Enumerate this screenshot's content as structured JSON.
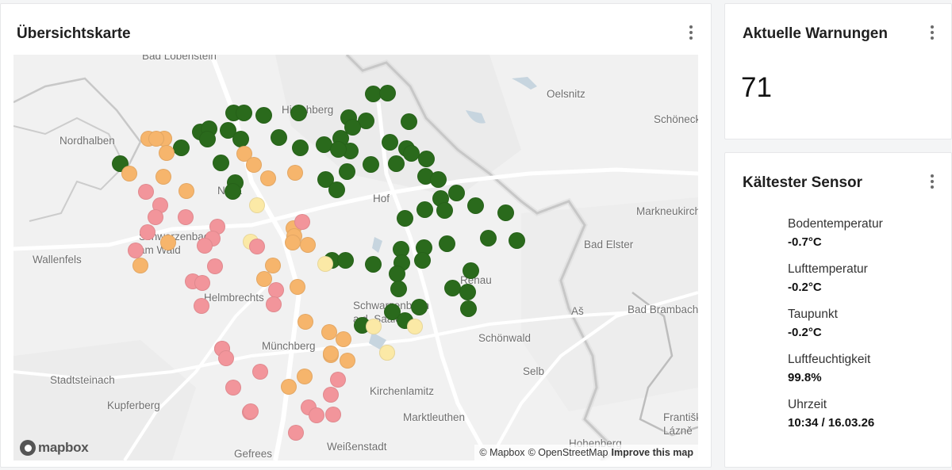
{
  "map_card": {
    "title": "Übersichtskarte",
    "place_labels": [
      "Bad Lobenstein",
      "Hirschberg",
      "Oelsnitz",
      "Schöneck",
      "Nordhalben",
      "Naila",
      "Hof",
      "Markneukirchen",
      "Schwarzenbach am Wald",
      "Bad Elster",
      "Wallenfels",
      "Rehau",
      "Helmbrechts",
      "Schwarzenbach a.d. Saale",
      "Aš",
      "Bad Brambach",
      "Schönwald",
      "Münchberg",
      "Selb",
      "Stadtsteinach",
      "Kirchenlamitz",
      "Kupferberg",
      "Marktleuthen",
      "Františkovy Lázně",
      "Hohenberg",
      "Gefrees",
      "Weißenstadt"
    ],
    "attribution": {
      "mapbox": "© Mapbox",
      "osm": "© OpenStreetMap",
      "improve": "Improve this map"
    },
    "logo_text": "mapbox",
    "marker_colors": {
      "dark_green": "#2a6a1c",
      "light_yellow": "#fbe9a6",
      "orange": "#f6b56c",
      "pink": "#f2959b"
    },
    "markers": [
      {
        "c": "dark_green"
      },
      {
        "c": "dark_green"
      },
      {
        "c": "dark_green"
      },
      {
        "c": "dark_green"
      },
      {
        "c": "dark_green"
      },
      {
        "c": "dark_green"
      },
      {
        "c": "dark_green"
      },
      {
        "c": "dark_green"
      },
      {
        "c": "dark_green"
      },
      {
        "c": "dark_green"
      },
      {
        "c": "dark_green"
      },
      {
        "c": "dark_green"
      },
      {
        "c": "dark_green"
      },
      {
        "c": "dark_green"
      },
      {
        "c": "dark_green"
      },
      {
        "c": "dark_green"
      },
      {
        "c": "dark_green"
      },
      {
        "c": "dark_green"
      },
      {
        "c": "dark_green"
      },
      {
        "c": "dark_green"
      },
      {
        "c": "dark_green"
      },
      {
        "c": "dark_green"
      },
      {
        "c": "dark_green"
      },
      {
        "c": "dark_green"
      },
      {
        "c": "dark_green"
      },
      {
        "c": "dark_green"
      },
      {
        "c": "dark_green"
      },
      {
        "c": "dark_green"
      },
      {
        "c": "dark_green"
      },
      {
        "c": "dark_green"
      },
      {
        "c": "dark_green"
      },
      {
        "c": "dark_green"
      },
      {
        "c": "dark_green"
      },
      {
        "c": "dark_green"
      },
      {
        "c": "dark_green"
      },
      {
        "c": "dark_green"
      },
      {
        "c": "dark_green"
      },
      {
        "c": "dark_green"
      },
      {
        "c": "dark_green"
      },
      {
        "c": "dark_green"
      },
      {
        "c": "dark_green"
      },
      {
        "c": "dark_green"
      },
      {
        "c": "dark_green"
      },
      {
        "c": "dark_green"
      },
      {
        "c": "dark_green"
      },
      {
        "c": "dark_green"
      },
      {
        "c": "dark_green"
      },
      {
        "c": "dark_green"
      },
      {
        "c": "dark_green"
      },
      {
        "c": "dark_green"
      },
      {
        "c": "dark_green"
      },
      {
        "c": "dark_green"
      },
      {
        "c": "dark_green"
      },
      {
        "c": "dark_green"
      },
      {
        "c": "dark_green"
      },
      {
        "c": "dark_green"
      },
      {
        "c": "dark_green"
      },
      {
        "c": "dark_green"
      },
      {
        "c": "dark_green"
      },
      {
        "c": "dark_green"
      },
      {
        "c": "dark_green"
      },
      {
        "c": "dark_green"
      },
      {
        "c": "dark_green"
      },
      {
        "c": "dark_green"
      },
      {
        "c": "light_yellow"
      },
      {
        "c": "light_yellow"
      },
      {
        "c": "light_yellow"
      },
      {
        "c": "light_yellow"
      },
      {
        "c": "light_yellow"
      },
      {
        "c": "light_yellow"
      },
      {
        "c": "light_yellow"
      },
      {
        "c": "light_yellow"
      },
      {
        "c": "orange"
      },
      {
        "c": "orange"
      },
      {
        "c": "orange"
      },
      {
        "c": "orange"
      },
      {
        "c": "orange"
      },
      {
        "c": "orange"
      },
      {
        "c": "orange"
      },
      {
        "c": "orange"
      },
      {
        "c": "orange"
      },
      {
        "c": "orange"
      },
      {
        "c": "orange"
      },
      {
        "c": "orange"
      },
      {
        "c": "orange"
      },
      {
        "c": "orange"
      },
      {
        "c": "orange"
      },
      {
        "c": "orange"
      },
      {
        "c": "orange"
      },
      {
        "c": "orange"
      },
      {
        "c": "orange"
      },
      {
        "c": "orange"
      },
      {
        "c": "orange"
      },
      {
        "c": "orange"
      },
      {
        "c": "orange"
      },
      {
        "c": "orange"
      },
      {
        "c": "orange"
      },
      {
        "c": "orange"
      },
      {
        "c": "orange"
      },
      {
        "c": "orange"
      },
      {
        "c": "pink"
      },
      {
        "c": "pink"
      },
      {
        "c": "pink"
      },
      {
        "c": "pink"
      },
      {
        "c": "pink"
      },
      {
        "c": "pink"
      },
      {
        "c": "pink"
      },
      {
        "c": "pink"
      },
      {
        "c": "pink"
      },
      {
        "c": "pink"
      },
      {
        "c": "pink"
      },
      {
        "c": "pink"
      },
      {
        "c": "pink"
      },
      {
        "c": "pink"
      },
      {
        "c": "pink"
      },
      {
        "c": "pink"
      },
      {
        "c": "pink"
      },
      {
        "c": "pink"
      },
      {
        "c": "pink"
      },
      {
        "c": "pink"
      },
      {
        "c": "pink"
      },
      {
        "c": "pink"
      },
      {
        "c": "pink"
      },
      {
        "c": "pink"
      },
      {
        "c": "pink"
      },
      {
        "c": "pink"
      },
      {
        "c": "pink"
      },
      {
        "c": "pink"
      },
      {
        "c": "pink"
      },
      {
        "c": "pink"
      }
    ]
  },
  "warnings_card": {
    "title": "Aktuelle Warnungen",
    "value": "71"
  },
  "sensor_card": {
    "title": "Kältester Sensor",
    "items": [
      {
        "label": "Bodentemperatur",
        "value": "-0.7°C"
      },
      {
        "label": "Lufttemperatur",
        "value": "-0.2°C"
      },
      {
        "label": "Taupunkt",
        "value": "-0.2°C"
      },
      {
        "label": "Luftfeuchtigkeit",
        "value": "99.8%"
      },
      {
        "label": "Uhrzeit",
        "value": "10:34 / 16.03.26"
      }
    ]
  }
}
